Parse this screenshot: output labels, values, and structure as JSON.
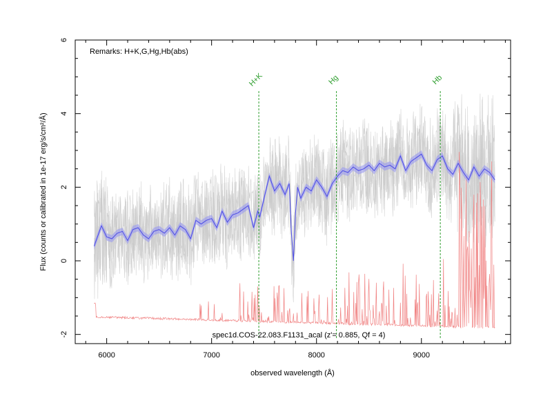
{
  "chart_data": {
    "type": "line",
    "title": "",
    "xlabel": "observed wavelength (Å)",
    "ylabel": "Flux (counts or calibrated in 1e-17 erg/s/cm²/Å)",
    "xlim": [
      5700,
      9850
    ],
    "ylim": [
      -2.25,
      6
    ],
    "x_ticks": [
      6000,
      7000,
      8000,
      9000
    ],
    "y_ticks": [
      -2,
      0,
      2,
      4,
      6
    ],
    "remarks": "Remarks: H+K,G,Hg,Hb(abs)",
    "caption": "spec1d.COS-22.083.F1131_acal (z'= 0.885, Qf = 4)",
    "colors": {
      "raw_spectrum": "#c8c8c8",
      "smoothed_spectrum": "#4b4be6",
      "smoothed_band": "#9a9af0",
      "noise_sky": "#f08080",
      "line_markers": "#2e9e2e"
    },
    "line_markers": [
      {
        "label": "H+K",
        "x": 7450
      },
      {
        "label": "Hg",
        "x": 8190
      },
      {
        "label": "Hb",
        "x": 9180
      }
    ],
    "series": [
      {
        "name": "smoothed spectrum",
        "x": [
          5880,
          5950,
          6000,
          6050,
          6100,
          6150,
          6200,
          6250,
          6300,
          6350,
          6400,
          6450,
          6500,
          6550,
          6600,
          6650,
          6700,
          6750,
          6800,
          6850,
          6900,
          6950,
          7000,
          7050,
          7100,
          7150,
          7200,
          7250,
          7300,
          7350,
          7400,
          7440,
          7460,
          7500,
          7550,
          7600,
          7650,
          7700,
          7740,
          7760,
          7780,
          7800,
          7820,
          7850,
          7900,
          7950,
          8000,
          8050,
          8100,
          8150,
          8200,
          8250,
          8300,
          8350,
          8400,
          8450,
          8500,
          8550,
          8600,
          8650,
          8700,
          8750,
          8800,
          8850,
          8900,
          8950,
          9000,
          9050,
          9100,
          9150,
          9200,
          9250,
          9300,
          9350,
          9400,
          9450,
          9500,
          9550,
          9600,
          9650,
          9700
        ],
        "values": [
          0.4,
          0.95,
          0.65,
          0.6,
          0.75,
          0.8,
          0.55,
          0.85,
          0.9,
          0.7,
          0.6,
          0.8,
          0.85,
          0.75,
          0.9,
          0.7,
          0.95,
          0.85,
          0.6,
          1.1,
          1.0,
          1.1,
          1.15,
          0.9,
          1.35,
          1.05,
          1.25,
          1.3,
          1.4,
          1.5,
          0.9,
          1.35,
          1.2,
          1.7,
          2.3,
          1.9,
          2.1,
          1.8,
          2.1,
          0.8,
          0.0,
          1.3,
          2.0,
          1.7,
          2.0,
          1.9,
          2.2,
          2.0,
          1.75,
          2.1,
          2.3,
          2.45,
          2.4,
          2.55,
          2.45,
          2.5,
          2.6,
          2.45,
          2.65,
          2.55,
          2.6,
          2.5,
          2.85,
          2.45,
          2.7,
          2.8,
          2.9,
          2.6,
          2.45,
          2.75,
          2.85,
          2.5,
          2.35,
          2.65,
          2.4,
          2.2,
          2.55,
          2.3,
          2.5,
          2.4,
          2.2
        ]
      }
    ]
  }
}
